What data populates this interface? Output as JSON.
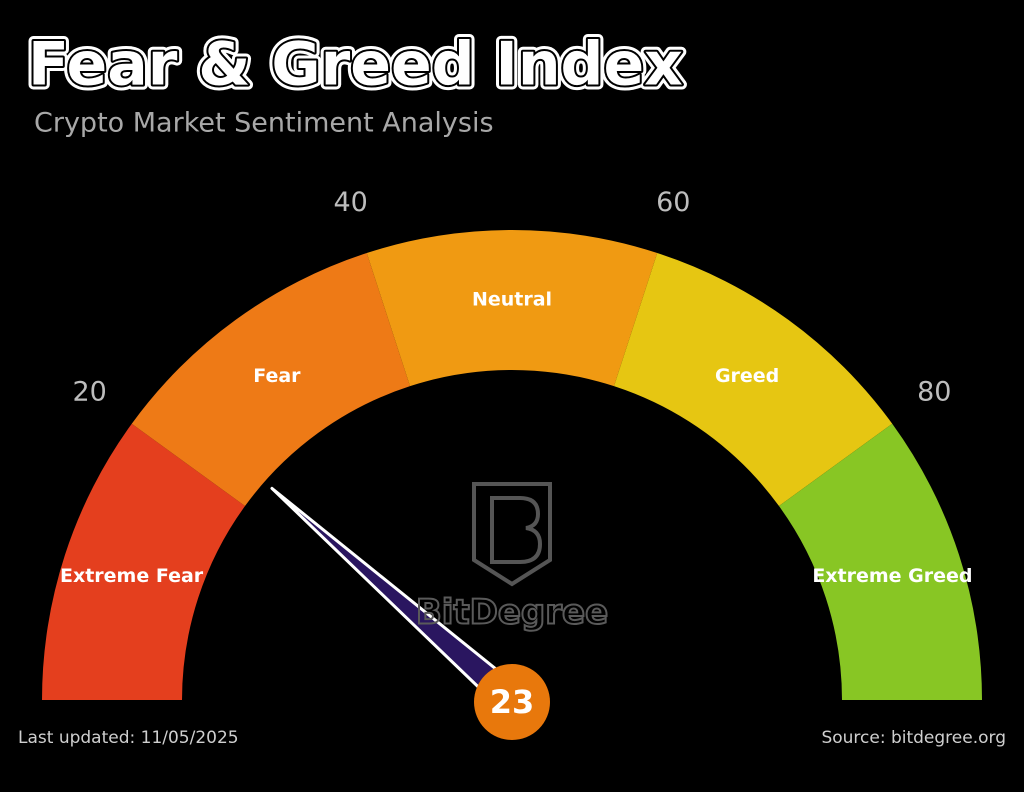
{
  "chart_data": {
    "type": "gauge",
    "title": "Fear & Greed Index",
    "subtitle": "Crypto Market Sentiment Analysis",
    "value": 23,
    "ylim": [
      0,
      100
    ],
    "yticks": [
      20,
      40,
      60,
      80
    ],
    "bands": [
      {
        "name": "Extreme Fear",
        "from": 0,
        "to": 20,
        "color": "#e43f1e"
      },
      {
        "name": "Fear",
        "from": 20,
        "to": 40,
        "color": "#ee7a16"
      },
      {
        "name": "Neutral",
        "from": 40,
        "to": 60,
        "color": "#f09a12"
      },
      {
        "name": "Greed",
        "from": 60,
        "to": 80,
        "color": "#e6c612"
      },
      {
        "name": "Extreme Greed",
        "from": 80,
        "to": 100,
        "color": "#88c624"
      }
    ],
    "needle_color": "#2a1660",
    "value_color": "#e8780c",
    "watermark": "BitDegree",
    "footer_left": "Last updated: 11/05/2025",
    "footer_right": "Source: bitdegree.org"
  }
}
